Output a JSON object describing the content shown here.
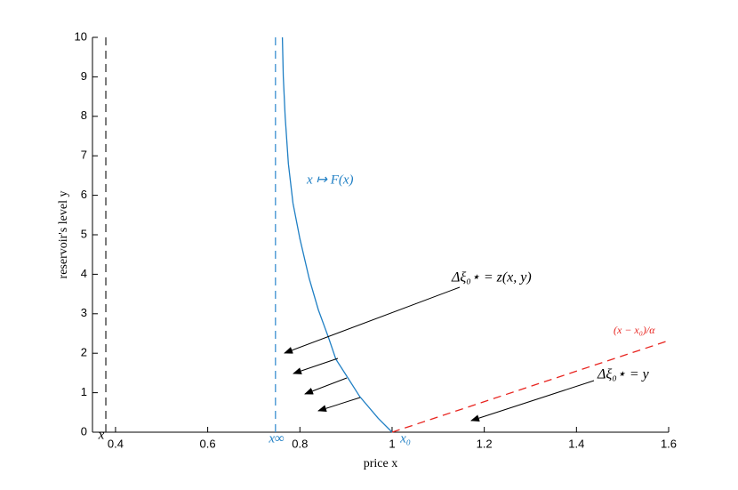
{
  "chart_data": {
    "type": "line",
    "xlabel": "price x",
    "ylabel": "reservoir's level y",
    "xlim": [
      0.35,
      1.6
    ],
    "ylim": [
      0,
      10
    ],
    "xticks": [
      0.4,
      0.6,
      0.8,
      1,
      1.2,
      1.4,
      1.6
    ],
    "yticks": [
      0,
      1,
      2,
      3,
      4,
      5,
      6,
      7,
      8,
      9,
      10
    ],
    "series": [
      {
        "color": "#333333",
        "dashed": true,
        "x": [
          0.379,
          0.379
        ],
        "values": [
          0,
          10
        ]
      },
      {
        "color": "#3a8fd0",
        "dashed": true,
        "x": [
          0.747,
          0.747
        ],
        "values": [
          0,
          10
        ]
      },
      {
        "color": "#1f7fc4",
        "dashed": false,
        "x": [
          1.0,
          0.97,
          0.93,
          0.9,
          0.878,
          0.862,
          0.84,
          0.82,
          0.8,
          0.785,
          0.775,
          0.768,
          0.764,
          0.762
        ],
        "values": [
          0,
          0.35,
          0.9,
          1.45,
          1.85,
          2.4,
          3.1,
          3.9,
          4.9,
          5.8,
          6.8,
          8.0,
          9.0,
          10
        ]
      },
      {
        "color": "#e8241f",
        "dashed": true,
        "x": [
          1.0,
          1.6
        ],
        "values": [
          0,
          2.32
        ]
      }
    ],
    "annotations": [
      {
        "text": "x ↦ F(x)",
        "color": "#1f7fc4"
      },
      {
        "text": "Δξ₀⋆ = z(x, y)",
        "color": "#000000"
      },
      {
        "text": "(x − x₀)/α",
        "color": "#e8241f"
      },
      {
        "text": "Δξ₀⋆ = y",
        "color": "#000000"
      },
      {
        "text": "x",
        "color": "#000000"
      },
      {
        "text": "x∞",
        "color": "#1f7fc4"
      },
      {
        "text": "x₀",
        "color": "#1f7fc4"
      }
    ]
  }
}
